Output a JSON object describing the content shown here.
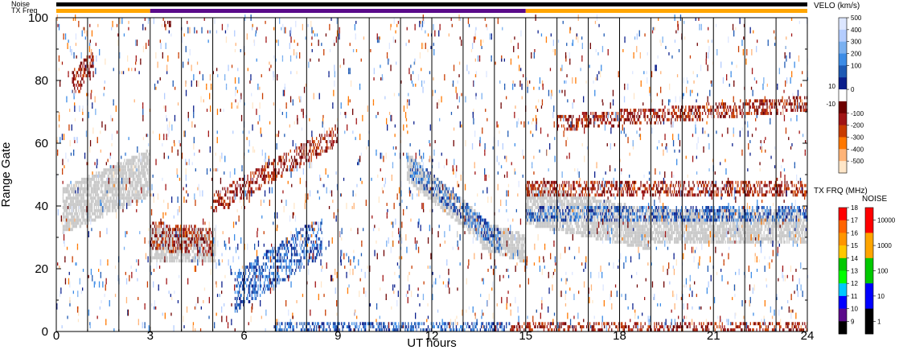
{
  "chart_data": {
    "type": "heatmap",
    "xlabel": "UT hours",
    "ylabel": "Range Gate",
    "xlim": [
      0,
      24
    ],
    "ylim": [
      0,
      100
    ],
    "x_ticks": [
      "0",
      "3",
      "6",
      "9",
      "12",
      "15",
      "18",
      "21",
      "24"
    ],
    "y_ticks": [
      "0",
      "20",
      "40",
      "60",
      "80",
      "100"
    ],
    "grid": "vertical lines every 1 UT hour",
    "top_strips": [
      {
        "label": "Noise",
        "color": "#000000"
      },
      {
        "label": "TX Freq",
        "segments": [
          {
            "from": 0,
            "to": 3,
            "color": "#ffa500"
          },
          {
            "from": 3,
            "to": 15,
            "color": "#5a0a8a"
          },
          {
            "from": 15,
            "to": 24,
            "color": "#ffa500"
          }
        ]
      }
    ],
    "ground_scatter_color": "#c8c8c8",
    "echo_bands": [
      {
        "kind": "ground_scatter",
        "t0": 0.2,
        "t1": 3.0,
        "g0": 38,
        "g1": 50,
        "w": 7
      },
      {
        "kind": "ground_scatter",
        "t0": 3.0,
        "t1": 5.1,
        "g0": 27,
        "g1": 27,
        "w": 5
      },
      {
        "kind": "ground_scatter",
        "t0": 11.2,
        "t1": 13.6,
        "g0": 52,
        "g1": 32,
        "w": 4
      },
      {
        "kind": "ground_scatter",
        "t0": 13.6,
        "t1": 15.0,
        "g0": 30,
        "g1": 26,
        "w": 4
      },
      {
        "kind": "ground_scatter",
        "t0": 15.0,
        "t1": 19.0,
        "g0": 40,
        "g1": 32,
        "w": 6
      },
      {
        "kind": "ground_scatter",
        "t0": 19.0,
        "t1": 24.0,
        "g0": 33,
        "g1": 33,
        "w": 5
      },
      {
        "kind": "towards",
        "t0": 5.7,
        "t1": 8.5,
        "g0": 12,
        "g1": 30,
        "w": 6
      },
      {
        "kind": "towards",
        "t0": 11.3,
        "t1": 14.2,
        "g0": 52,
        "g1": 28,
        "w": 3
      },
      {
        "kind": "towards",
        "t0": 15.0,
        "t1": 24.0,
        "g0": 37,
        "g1": 37,
        "w": 2
      },
      {
        "kind": "towards",
        "t0": 7.0,
        "t1": 14.5,
        "g0": 1,
        "g1": 1,
        "w": 1
      },
      {
        "kind": "away",
        "t0": 5.0,
        "t1": 9.0,
        "g0": 40,
        "g1": 62,
        "w": 3
      },
      {
        "kind": "away",
        "t0": 3.0,
        "t1": 5.0,
        "g0": 30,
        "g1": 28,
        "w": 4
      },
      {
        "kind": "away",
        "t0": 15.0,
        "t1": 24.0,
        "g0": 45,
        "g1": 45,
        "w": 2
      },
      {
        "kind": "away",
        "t0": 16.0,
        "t1": 24.0,
        "g0": 66,
        "g1": 72,
        "w": 2
      },
      {
        "kind": "away",
        "t0": 0.5,
        "t1": 1.2,
        "g0": 78,
        "g1": 85,
        "w": 4
      },
      {
        "kind": "away",
        "t0": 14.5,
        "t1": 24.0,
        "g0": 1,
        "g1": 1,
        "w": 1
      }
    ],
    "velocity_colorbar": {
      "title": "VELO (km/s)",
      "ticks": [
        "500",
        "400",
        "300",
        "200",
        "100",
        "0",
        "-100",
        "-200",
        "-300",
        "-400",
        "-500"
      ],
      "side_ticks": [
        "10",
        "-10"
      ],
      "colors": [
        "#dce6ff",
        "#b4cdff",
        "#7ab0f0",
        "#3c8ce6",
        "#1e5ab4",
        "#0a1e8c",
        "#ffffff",
        "#6e0000",
        "#a01414",
        "#c83c00",
        "#ff7800",
        "#ffb478",
        "#ffe6c8"
      ]
    },
    "freq_colorbar": {
      "title": "TX FRQ (MHz)",
      "ticks": [
        "18",
        "17",
        "16",
        "15",
        "14",
        "13",
        "12",
        "11",
        "10",
        "9"
      ],
      "colors": [
        "#ff0000",
        "#ff6400",
        "#ff9600",
        "#ffc800",
        "#00c800",
        "#00ff00",
        "#00c8ff",
        "#0000ff",
        "#5a0a8a",
        "#000000"
      ]
    },
    "noise_colorbar": {
      "title": "NOISE",
      "ticks": [
        "10000",
        "1000",
        "100",
        "10",
        "1"
      ],
      "colors": [
        "#ff0000",
        "#ffa500",
        "#00c800",
        "#0000ff",
        "#000000"
      ]
    }
  }
}
